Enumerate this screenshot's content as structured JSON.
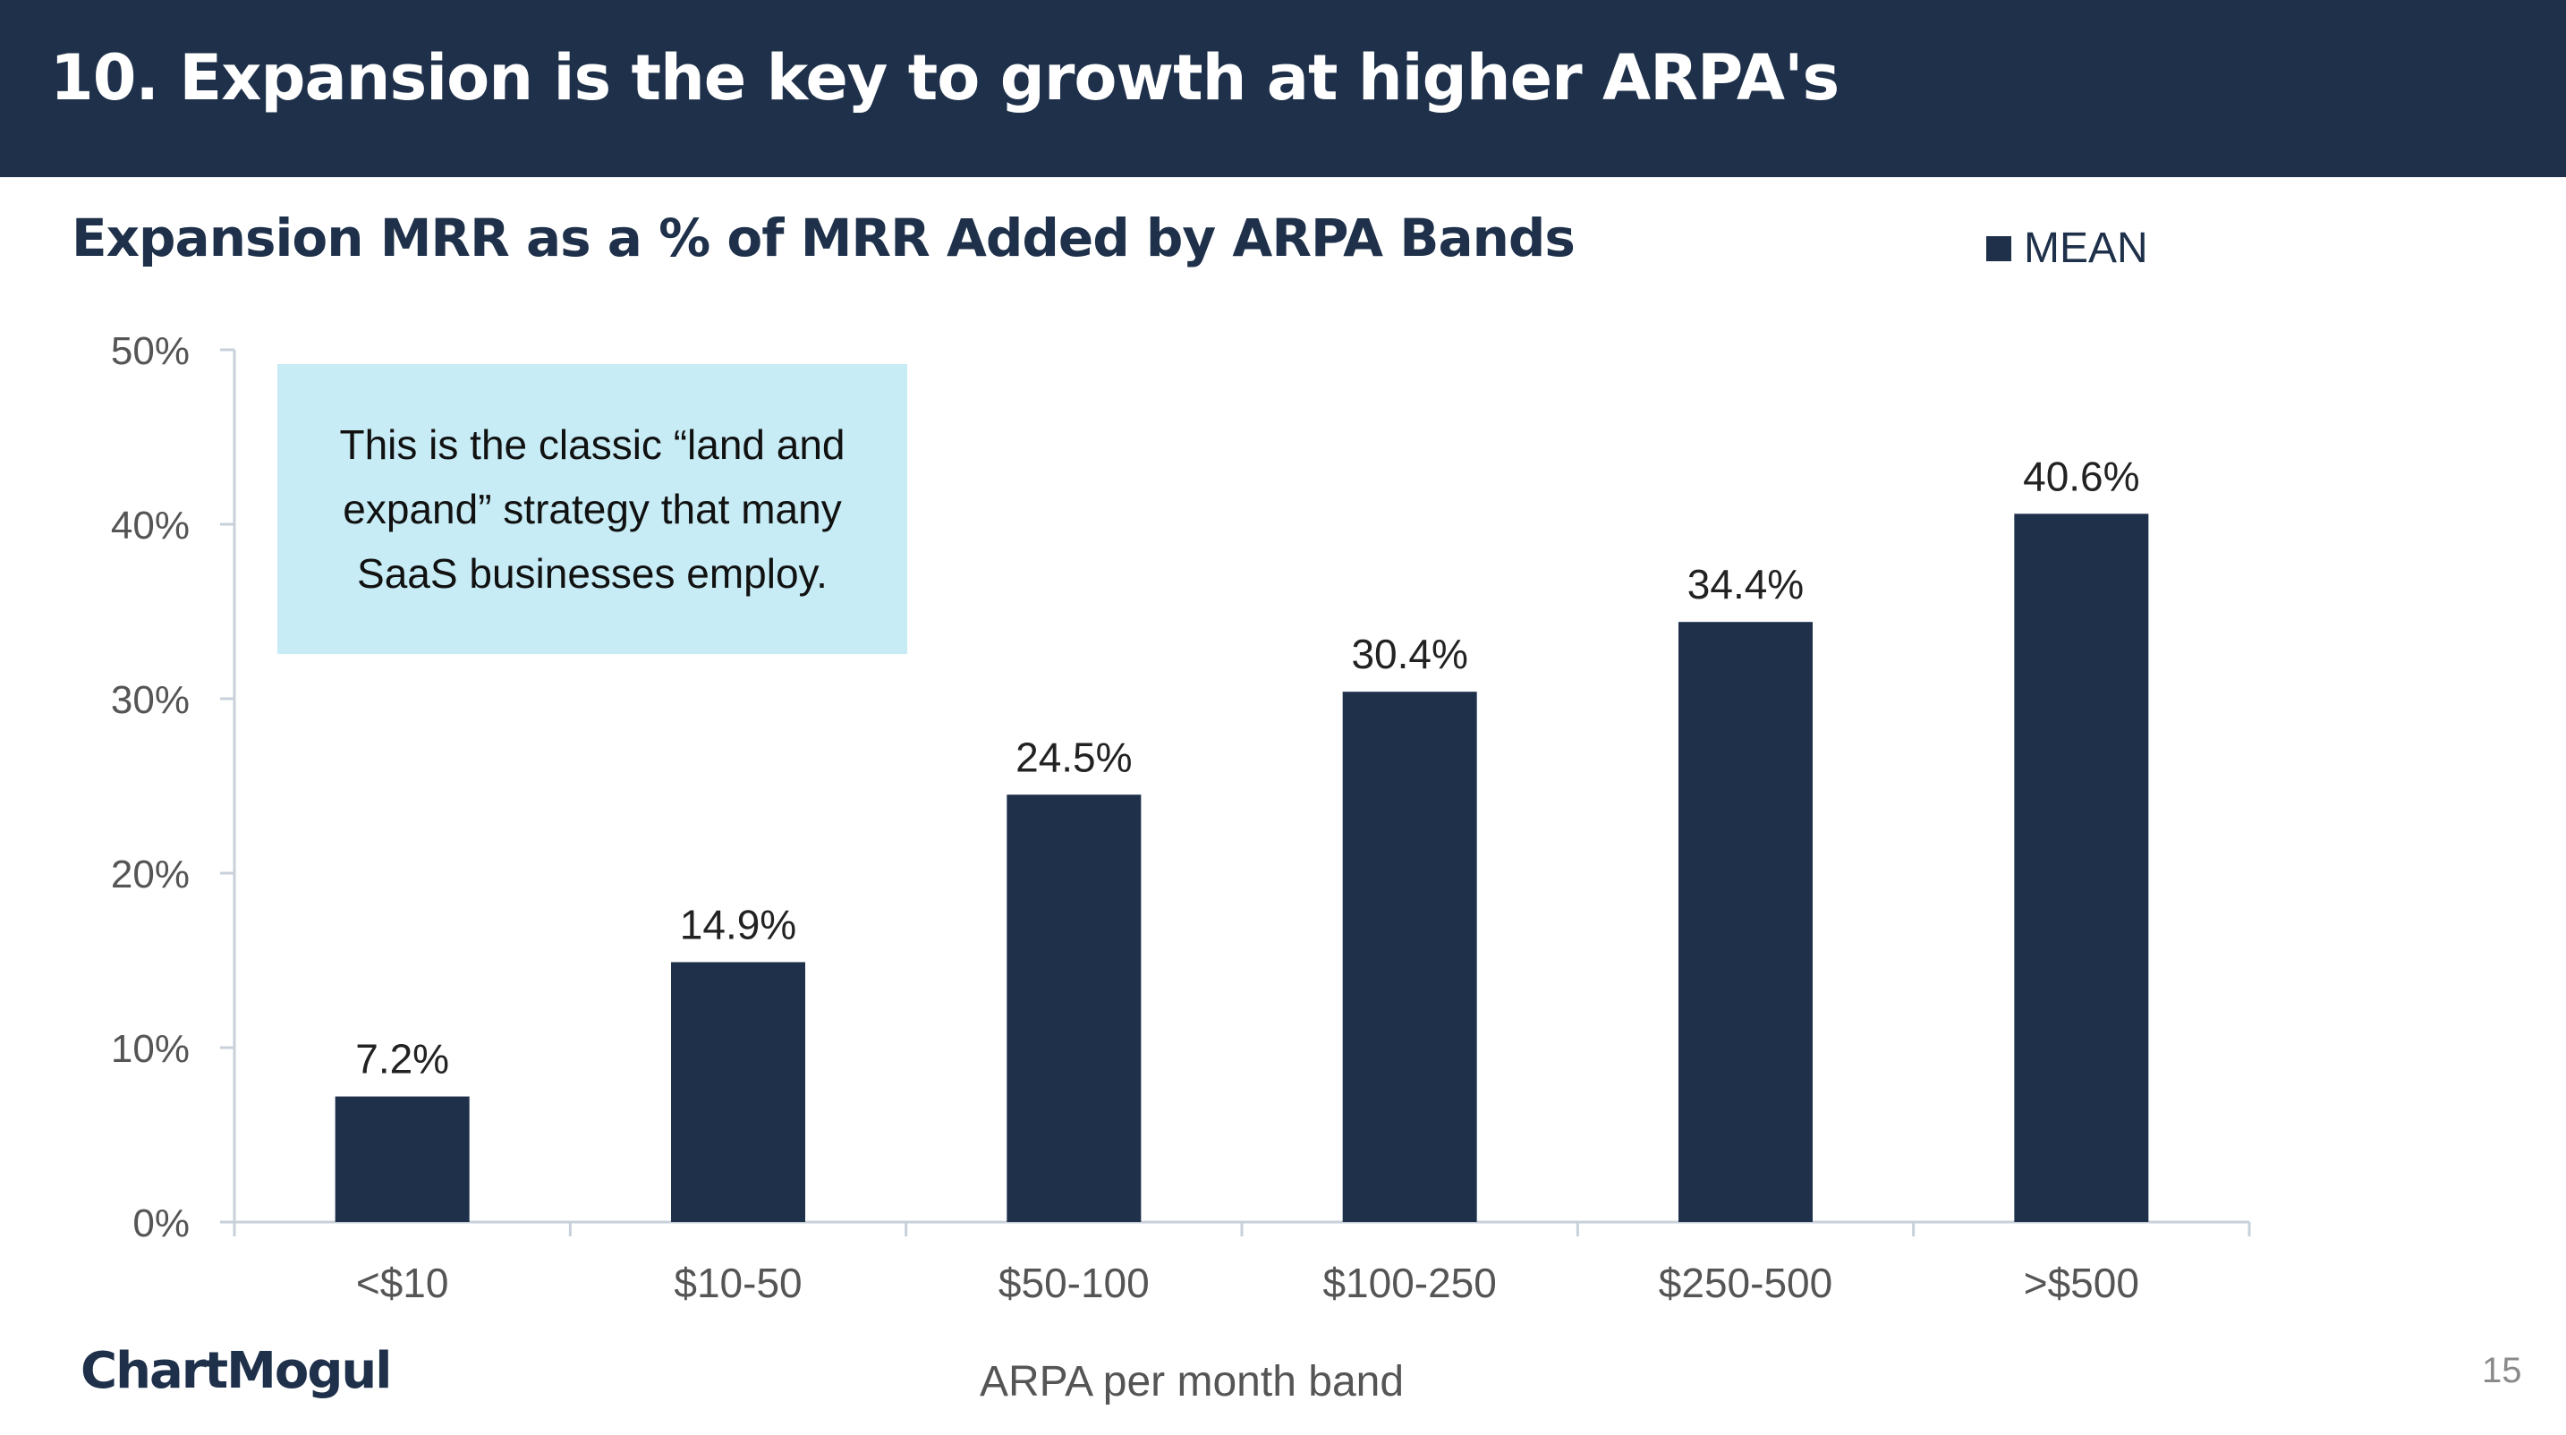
{
  "header": {
    "title": "10. Expansion is the key to growth at higher ARPA's"
  },
  "callout": {
    "text": "This is the classic “land and expand” strategy that many SaaS businesses employ."
  },
  "footer": {
    "brand": "ChartMogul",
    "page_number": "15"
  },
  "colors": {
    "primary": "#1e304a",
    "callout_bg": "#c7ecf5",
    "axis": "#c8d0da"
  },
  "chart_data": {
    "type": "bar",
    "title": "Expansion MRR as a % of MRR Added by ARPA Bands",
    "xlabel": "ARPA per month band",
    "ylabel": "",
    "categories": [
      "<$10",
      "$10-50",
      "$50-100",
      "$100-250",
      "$250-500",
      ">$500"
    ],
    "series": [
      {
        "name": "MEAN",
        "values": [
          7.2,
          14.9,
          24.5,
          30.4,
          34.4,
          40.6
        ]
      }
    ],
    "data_labels": [
      "7.2%",
      "14.9%",
      "24.5%",
      "30.4%",
      "34.4%",
      "40.6%"
    ],
    "ylim": [
      0,
      50
    ],
    "yticks": [
      0,
      10,
      20,
      30,
      40,
      50
    ],
    "ytick_labels": [
      "0%",
      "10%",
      "20%",
      "30%",
      "40%",
      "50%"
    ],
    "legend": "top-right",
    "grid": false
  }
}
